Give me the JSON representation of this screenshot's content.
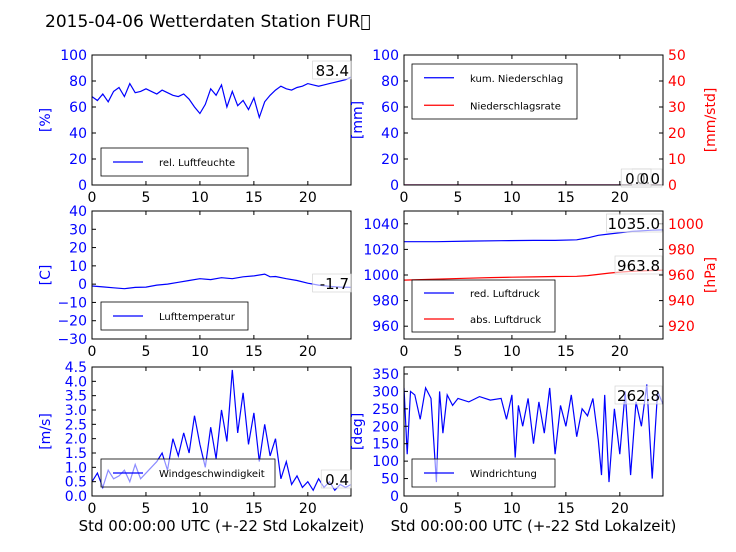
{
  "title": "2015-04-06 Wetterdaten Station FUR\u0000",
  "colors": {
    "blue": "#0000ff",
    "red": "#ff0000",
    "black": "#000000"
  },
  "chart_data": [
    {
      "type": "line",
      "ylabel": "[%]",
      "xlim": [
        0,
        24
      ],
      "ylim": [
        0,
        100
      ],
      "xticks": [
        "0",
        "5",
        "10",
        "15",
        "20"
      ],
      "yticks": [
        "0",
        "20",
        "40",
        "60",
        "80",
        "100"
      ],
      "legend_placement": "lower-left",
      "annotation": "83.4",
      "series": [
        {
          "name": "rel. Luftfeuchte",
          "color": "#0000ff",
          "x": [
            0,
            0.5,
            1,
            1.5,
            2,
            2.5,
            3,
            3.5,
            4,
            4.5,
            5,
            5.5,
            6,
            6.5,
            7,
            7.5,
            8,
            8.5,
            9,
            9.5,
            10,
            10.5,
            11,
            11.5,
            12,
            12.5,
            13,
            13.5,
            14,
            14.5,
            15,
            15.5,
            16,
            16.5,
            17,
            17.5,
            18,
            18.5,
            19,
            19.5,
            20,
            20.5,
            21,
            21.5,
            22,
            22.5,
            23,
            23.5,
            24
          ],
          "values": [
            68,
            65,
            70,
            64,
            72,
            75,
            68,
            78,
            71,
            72,
            74,
            72,
            70,
            73,
            71,
            69,
            68,
            70,
            66,
            60,
            55,
            62,
            74,
            69,
            77,
            60,
            72,
            61,
            65,
            58,
            67,
            52,
            64,
            69,
            73,
            76,
            74,
            73,
            75,
            76,
            78,
            77,
            76,
            77,
            78,
            79,
            80,
            81,
            83
          ]
        }
      ]
    },
    {
      "type": "line",
      "ylabel": "[mm]",
      "ylabel_right": "[mm/std]",
      "xlim": [
        0,
        24
      ],
      "ylim": [
        0,
        100
      ],
      "ylim_right": [
        0,
        50
      ],
      "xticks": [
        "0",
        "5",
        "10",
        "15",
        "20"
      ],
      "yticks": [
        "0",
        "20",
        "40",
        "60",
        "80",
        "100"
      ],
      "yticks_right": [
        "0",
        "10",
        "20",
        "30",
        "40",
        "50"
      ],
      "legend_placement": "upper-left",
      "annotation": "0.0",
      "annotation2": "0.0",
      "series": [
        {
          "name": "kum. Niederschlag",
          "color": "#0000ff",
          "x": [
            0,
            24
          ],
          "values": [
            0,
            0
          ]
        },
        {
          "name": "Niederschlagsrate",
          "color": "#ff0000",
          "x": [
            0,
            24
          ],
          "values": [
            0,
            0
          ]
        }
      ]
    },
    {
      "type": "line",
      "ylabel": "[C]",
      "xlim": [
        0,
        24
      ],
      "ylim": [
        -30,
        40
      ],
      "xticks": [
        "0",
        "5",
        "10",
        "15",
        "20"
      ],
      "yticks": [
        "−30",
        "−20",
        "−10",
        "0",
        "10",
        "20",
        "30",
        "40"
      ],
      "legend_placement": "lower-left",
      "annotation": "-1.7",
      "series": [
        {
          "name": "Lufttemperatur",
          "color": "#0000ff",
          "x": [
            0,
            1,
            2,
            3,
            4,
            5,
            6,
            7,
            8,
            9,
            10,
            11,
            12,
            13,
            14,
            15,
            16,
            16.5,
            17,
            18,
            19,
            20,
            21,
            22,
            23,
            24
          ],
          "values": [
            -1,
            -1.5,
            -2,
            -2.5,
            -1.8,
            -1.6,
            -0.5,
            0,
            1,
            2,
            3,
            2.5,
            3.5,
            3,
            4,
            4.5,
            5.5,
            4,
            4.2,
            3,
            2,
            0.5,
            -0.5,
            -1.2,
            -1.6,
            -1.7
          ]
        }
      ]
    },
    {
      "type": "line",
      "ylabel_right": "[hPa]",
      "xlim": [
        0,
        24
      ],
      "ylim": [
        950,
        1050
      ],
      "ylim_right": [
        910,
        1010
      ],
      "xticks": [
        "0",
        "5",
        "10",
        "15",
        "20"
      ],
      "yticks": [
        "960",
        "980",
        "1000",
        "1020",
        "1040"
      ],
      "yticks_right": [
        "920",
        "940",
        "960",
        "980",
        "1000"
      ],
      "legend_placement": "lower-left",
      "annotation": "1035.0",
      "annotation2": "963.8",
      "series": [
        {
          "name": "red. Luftdruck",
          "color": "#0000ff",
          "x": [
            0,
            3,
            6,
            9,
            12,
            14,
            16,
            17,
            18,
            19,
            20,
            21,
            22,
            23,
            24
          ],
          "values": [
            1026,
            1026,
            1026.5,
            1026.8,
            1027,
            1027,
            1027.5,
            1029,
            1031,
            1032,
            1033,
            1034,
            1034.5,
            1035,
            1035.2
          ]
        },
        {
          "name": "abs. Luftdruck",
          "color": "#ff0000",
          "axis": "right",
          "x": [
            0,
            2,
            4,
            6,
            8,
            10,
            12,
            14,
            16,
            17,
            18,
            19,
            20,
            21,
            22,
            23,
            24
          ],
          "values": [
            956,
            956.5,
            957,
            957.5,
            958,
            958.3,
            958.5,
            958.8,
            959,
            959.5,
            960.5,
            961.5,
            962.3,
            962.8,
            963.2,
            963.5,
            963.8
          ]
        }
      ]
    },
    {
      "type": "line",
      "ylabel": "[m/s]",
      "xlim": [
        0,
        24
      ],
      "ylim": [
        0,
        4.5
      ],
      "xlabel": "Std 00:00:00 UTC (+-22 Std Lokalzeit)",
      "xticks": [
        "0",
        "5",
        "10",
        "15",
        "20"
      ],
      "yticks": [
        "0.0",
        "0.5",
        "1.0",
        "1.5",
        "2.0",
        "2.5",
        "3.0",
        "3.5",
        "4.0",
        "4.5"
      ],
      "legend_placement": "lower-left",
      "annotation": "0.4",
      "series": [
        {
          "name": "Windgeschwindigkeit",
          "color": "#0000ff",
          "x": [
            0,
            0.5,
            1,
            1.5,
            2,
            2.5,
            3,
            3.5,
            4,
            4.5,
            5,
            5.5,
            6,
            6.5,
            7,
            7.5,
            8,
            8.5,
            9,
            9.5,
            10,
            10.5,
            11,
            11.5,
            12,
            12.5,
            13,
            13.5,
            14,
            14.5,
            15,
            15.5,
            16,
            16.5,
            17,
            17.5,
            18,
            18.5,
            19,
            19.5,
            20,
            20.5,
            21,
            21.5,
            22,
            22.5,
            23,
            23.5,
            24
          ],
          "values": [
            0.5,
            0.8,
            0.3,
            0.9,
            0.6,
            0.7,
            0.9,
            0.5,
            1.1,
            0.6,
            0.8,
            1.0,
            1.2,
            1.5,
            0.9,
            2.0,
            1.4,
            2.2,
            1.5,
            2.8,
            1.8,
            1.0,
            2.4,
            1.3,
            3.0,
            1.9,
            4.4,
            2.2,
            3.6,
            1.8,
            2.9,
            1.2,
            2.5,
            1.4,
            2.0,
            0.6,
            1.2,
            0.4,
            0.7,
            0.3,
            0.5,
            0.2,
            0.6,
            0.3,
            0.5,
            0.2,
            0.4,
            0.3,
            0.4
          ]
        }
      ]
    },
    {
      "type": "line",
      "ylabel": "[deg]",
      "xlim": [
        0,
        24
      ],
      "ylim": [
        0,
        370
      ],
      "xlabel": "Std 00:00:00 UTC (+-22 Std Lokalzeit)",
      "xticks": [
        "0",
        "5",
        "10",
        "15",
        "20"
      ],
      "yticks": [
        "0",
        "50",
        "100",
        "150",
        "200",
        "250",
        "300",
        "350"
      ],
      "legend_placement": "lower-left",
      "annotation": "262.8",
      "series": [
        {
          "name": "Windrichtung",
          "color": "#0000ff",
          "x": [
            0,
            0.3,
            0.6,
            1,
            1.5,
            2,
            2.5,
            3,
            3.3,
            3.6,
            4,
            4.5,
            5,
            6,
            7,
            8,
            9,
            9.5,
            10,
            10.3,
            10.6,
            11,
            11.5,
            12,
            12.5,
            13,
            13.5,
            14,
            14.5,
            15,
            15.5,
            16,
            16.5,
            17,
            17.5,
            18,
            18.3,
            18.6,
            19,
            19.5,
            20,
            20.5,
            21,
            21.5,
            22,
            22.5,
            23,
            23.5,
            24
          ],
          "values": [
            310,
            120,
            300,
            290,
            220,
            310,
            280,
            40,
            300,
            180,
            290,
            260,
            280,
            270,
            285,
            275,
            280,
            220,
            290,
            110,
            260,
            200,
            280,
            150,
            270,
            180,
            310,
            120,
            260,
            200,
            290,
            170,
            250,
            230,
            280,
            160,
            60,
            290,
            40,
            250,
            120,
            300,
            60,
            270,
            200,
            320,
            50,
            300,
            263
          ]
        }
      ]
    }
  ]
}
